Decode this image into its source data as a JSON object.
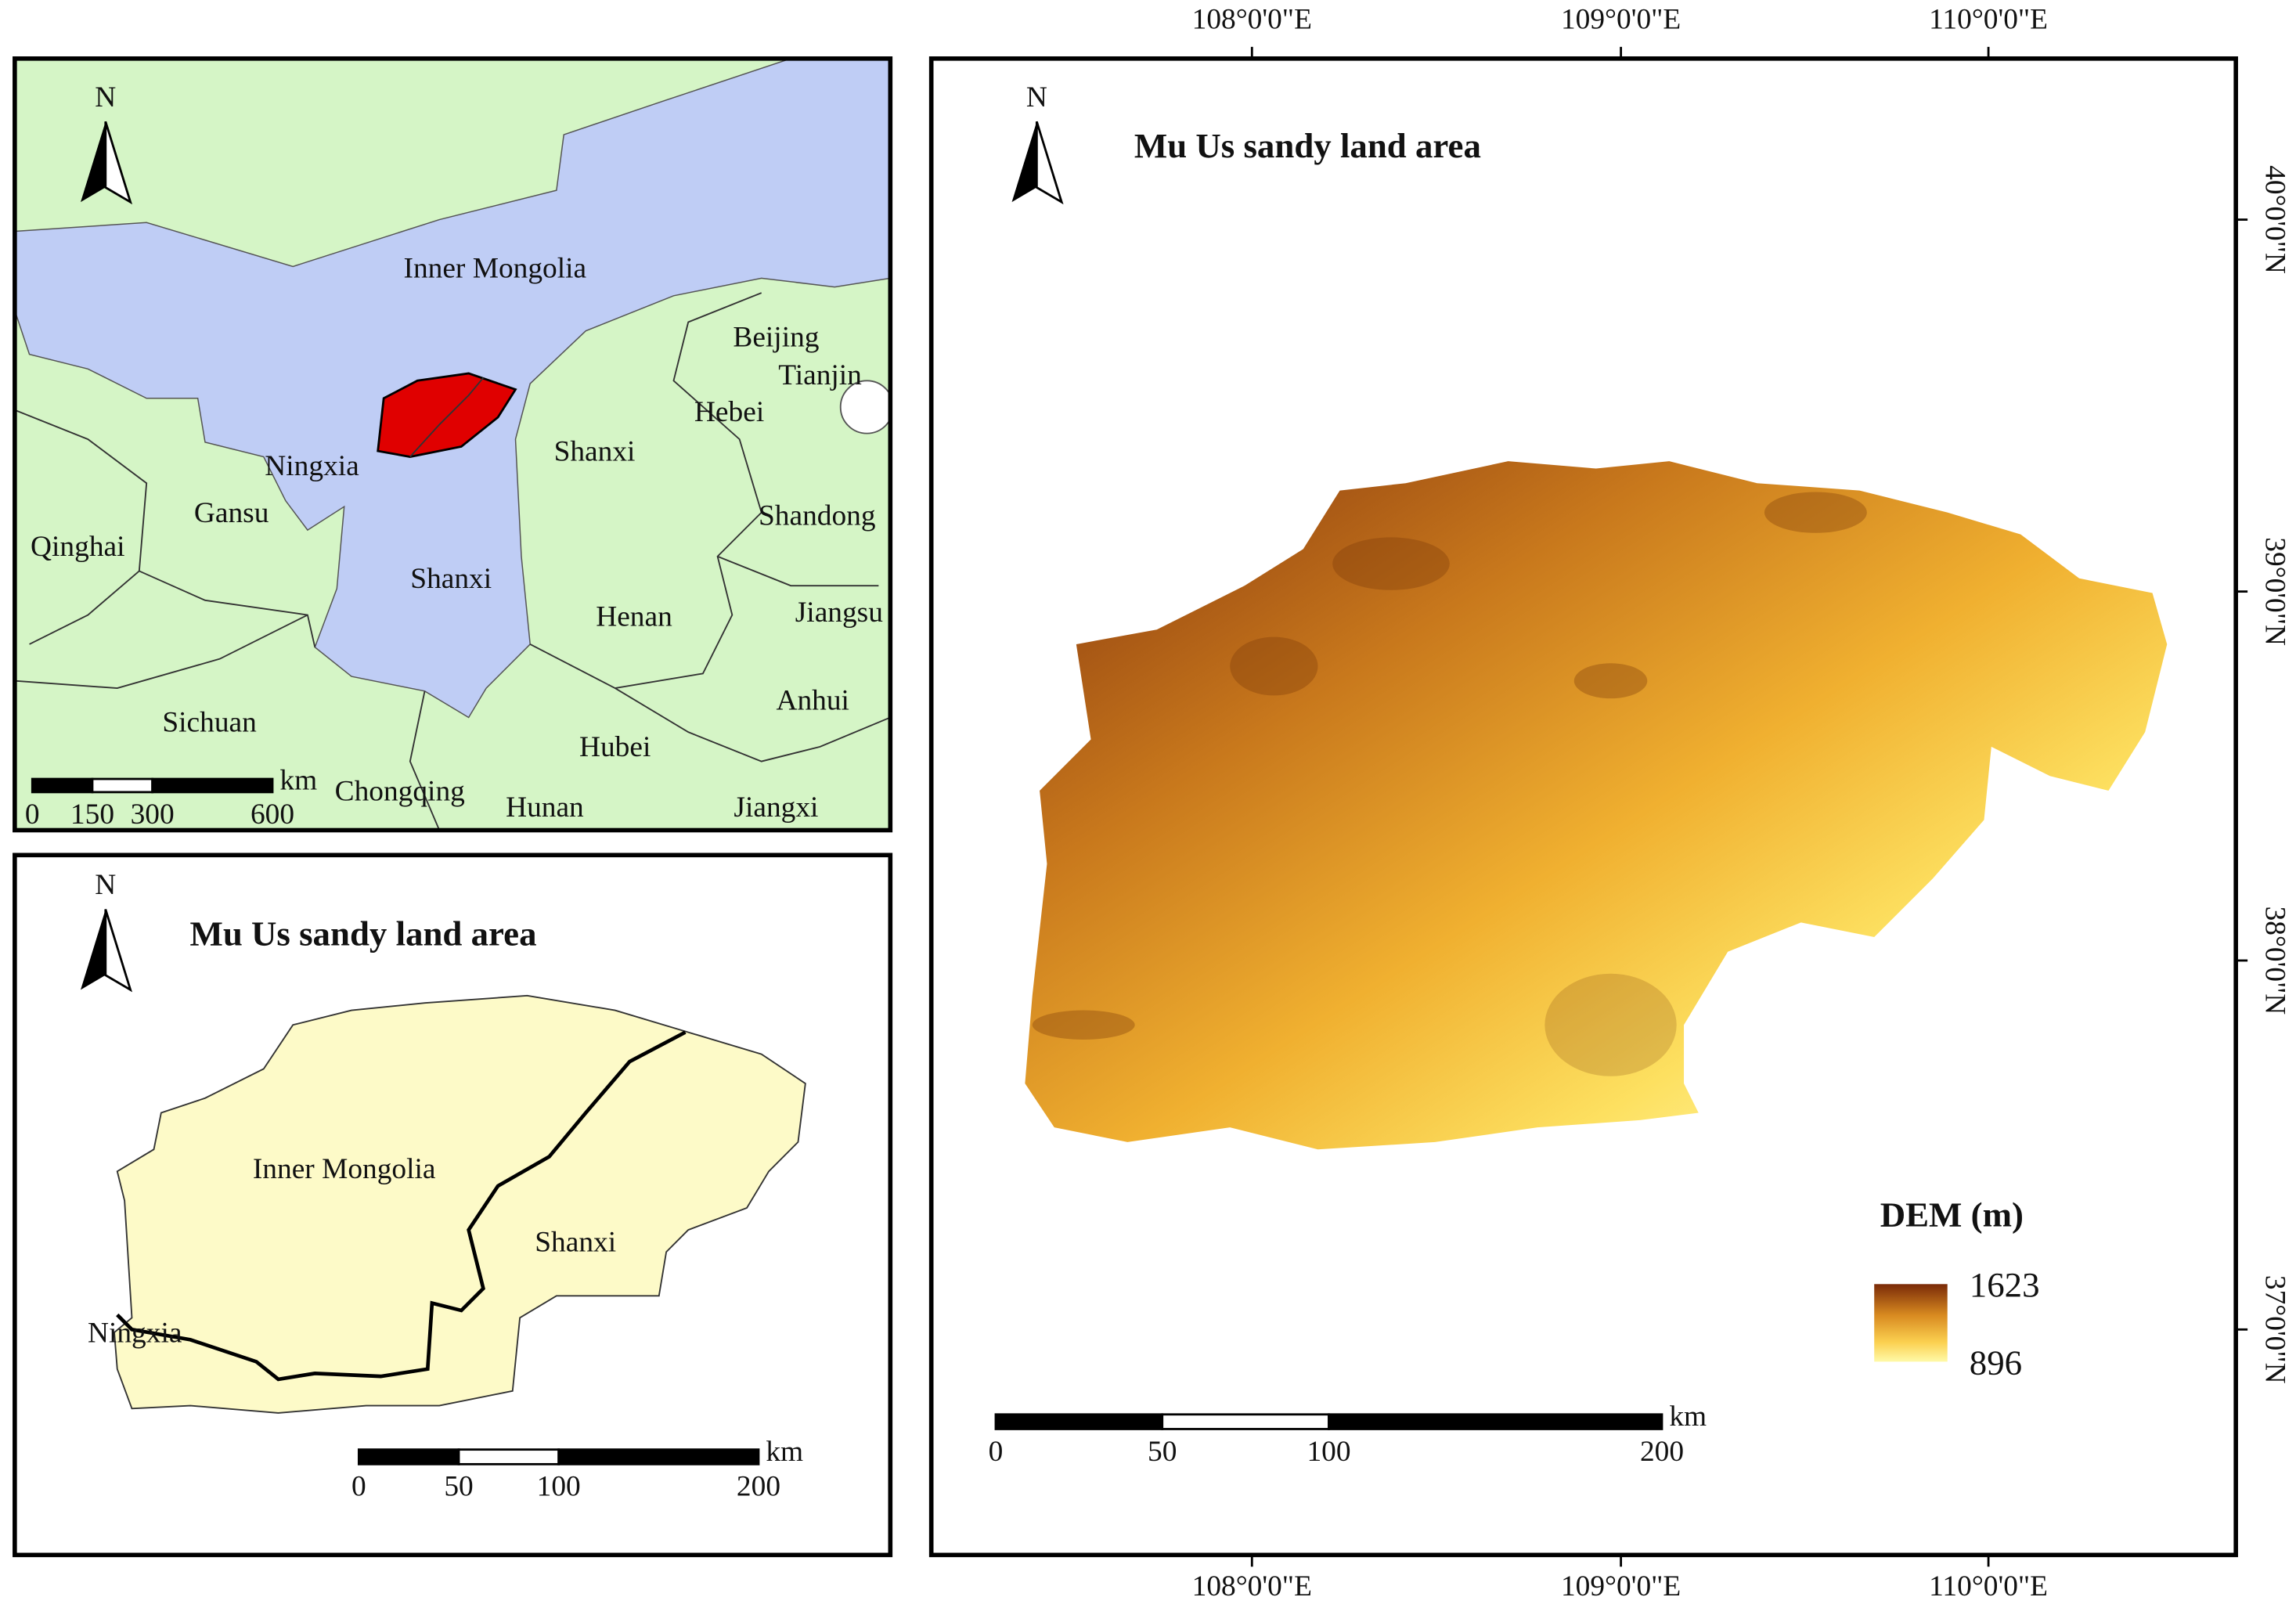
{
  "location_map": {
    "north": "N",
    "labels": [
      "Inner Mongolia",
      "Beijing",
      "Tianjin",
      "Hebei",
      "Shanxi",
      "Ningxia",
      "Gansu",
      "Shandong",
      "Qinghai",
      "Shanxi",
      "Henan",
      "Jiangsu",
      "Anhui",
      "Sichuan",
      "Hubei",
      "Chongqing",
      "Hunan",
      "Jiangxi"
    ],
    "scale": {
      "ticks": [
        0,
        150,
        300,
        600
      ],
      "unit": "km"
    }
  },
  "province_map": {
    "north": "N",
    "title": "Mu Us sandy land area",
    "labels": [
      "Inner Mongolia",
      "Shanxi",
      "Ningxia"
    ],
    "scale": {
      "ticks": [
        0,
        50,
        100,
        200
      ],
      "unit": "km"
    }
  },
  "dem_map": {
    "north": "N",
    "title": "Mu Us sandy land area",
    "legend": {
      "title": "DEM (m)",
      "max": 1623,
      "min": 896
    },
    "scale": {
      "ticks": [
        0,
        50,
        100,
        200
      ],
      "unit": "km"
    },
    "longitudes": [
      "108°0'0\"E",
      "109°0'0\"E",
      "110°0'0\"E"
    ],
    "latitudes": [
      "40°0'0\"N",
      "39°0'0\"N",
      "38°0'0\"N",
      "37°0'0\"N"
    ]
  }
}
